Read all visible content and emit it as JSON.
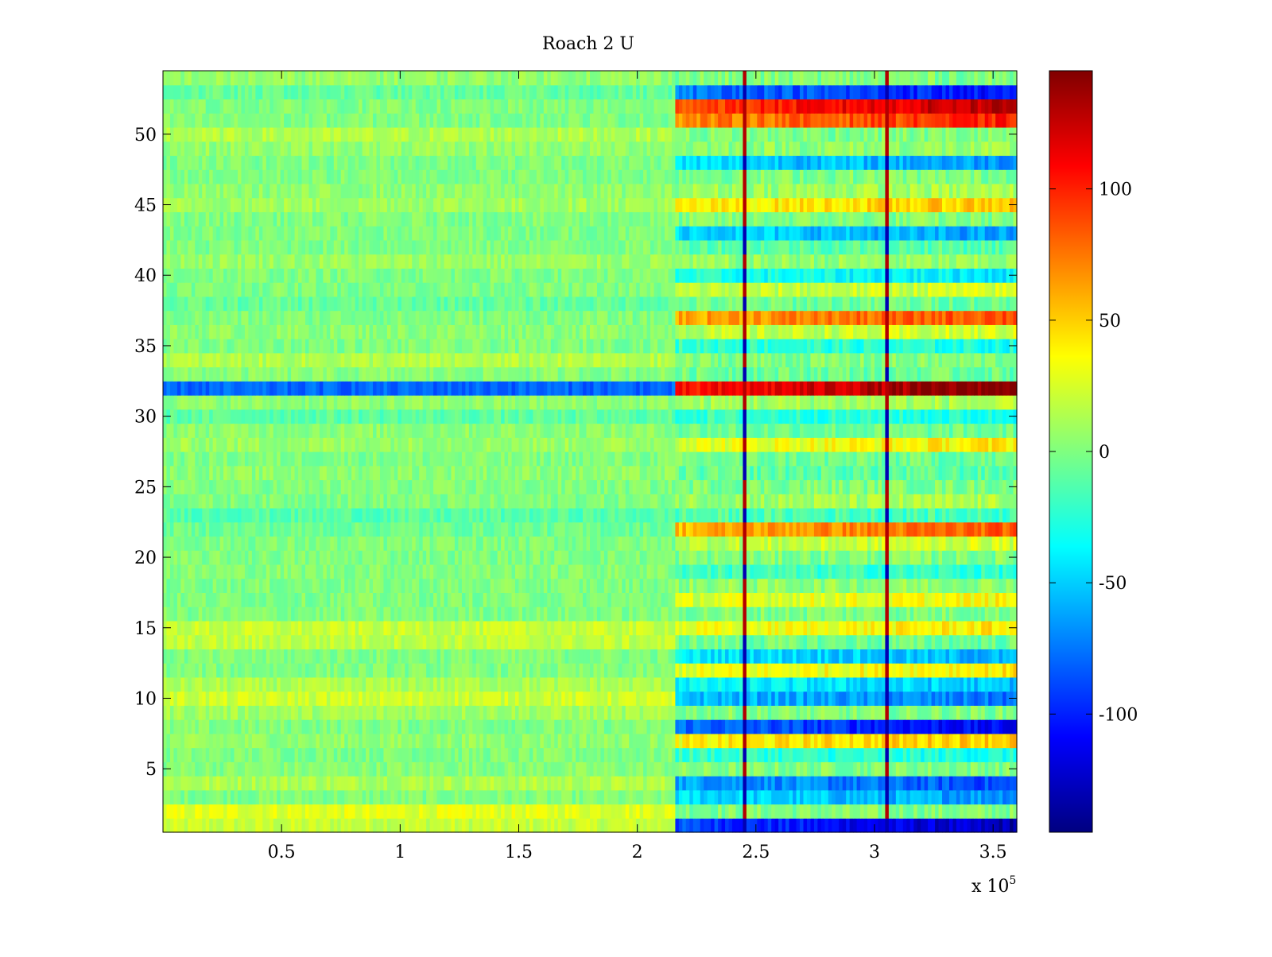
{
  "chart_data": {
    "type": "heatmap",
    "title": "Roach 2 U",
    "xlabel": "",
    "ylabel": "",
    "x_multiplier_label": "x 10",
    "x_multiplier_exponent": "5",
    "xlim": [
      0,
      3.6
    ],
    "ylim": [
      0.5,
      54.5
    ],
    "rows": 54,
    "x_ticks": [
      0.5,
      1,
      1.5,
      2,
      2.5,
      3,
      3.5
    ],
    "x_tick_labels": [
      "0.5",
      "1",
      "1.5",
      "2",
      "2.5",
      "3",
      "3.5"
    ],
    "y_ticks": [
      5,
      10,
      15,
      20,
      25,
      30,
      35,
      40,
      45,
      50
    ],
    "y_tick_labels": [
      "5",
      "10",
      "15",
      "20",
      "25",
      "30",
      "35",
      "40",
      "45",
      "50"
    ],
    "colorbar": {
      "colormap": "jet",
      "range": [
        -145,
        145
      ],
      "ticks": [
        -100,
        -50,
        0,
        50,
        100
      ],
      "tick_labels": [
        "-100",
        "-50",
        "0",
        "50",
        "100"
      ]
    },
    "segment_break_x": 2.16,
    "spike_columns_x": [
      2.44,
      3.05
    ],
    "rows_data_segment1": [
      20,
      28,
      0,
      14,
      2,
      0,
      5,
      0,
      10,
      22,
      12,
      0,
      0,
      18,
      20,
      0,
      0,
      0,
      2,
      0,
      0,
      -5,
      -12,
      0,
      0,
      4,
      0,
      8,
      4,
      -10,
      4,
      -80,
      2,
      14,
      0,
      4,
      0,
      -8,
      0,
      0,
      8,
      0,
      0,
      0,
      10,
      4,
      0,
      0,
      6,
      14,
      0,
      0,
      -8,
      6
    ],
    "rows_data_segment2": [
      -110,
      0,
      -55,
      -75,
      0,
      -25,
      45,
      -95,
      0,
      -65,
      -45,
      35,
      -50,
      -5,
      35,
      0,
      30,
      5,
      -20,
      0,
      20,
      70,
      -15,
      10,
      0,
      -10,
      -5,
      35,
      -5,
      -25,
      10,
      125,
      -5,
      0,
      -25,
      20,
      75,
      -5,
      20,
      -35,
      5,
      -10,
      -55,
      0,
      45,
      10,
      0,
      -55,
      5,
      0,
      85,
      110,
      -90,
      0
    ]
  }
}
